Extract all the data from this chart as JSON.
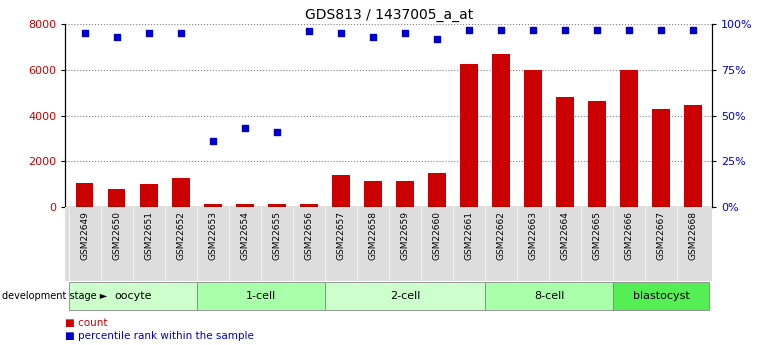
{
  "title": "GDS813 / 1437005_a_at",
  "samples": [
    "GSM22649",
    "GSM22650",
    "GSM22651",
    "GSM22652",
    "GSM22653",
    "GSM22654",
    "GSM22655",
    "GSM22656",
    "GSM22657",
    "GSM22658",
    "GSM22659",
    "GSM22660",
    "GSM22661",
    "GSM22662",
    "GSM22663",
    "GSM22664",
    "GSM22665",
    "GSM22666",
    "GSM22667",
    "GSM22668"
  ],
  "counts": [
    1050,
    800,
    1000,
    1280,
    120,
    150,
    130,
    140,
    1380,
    1150,
    1150,
    1500,
    6250,
    6700,
    6000,
    4800,
    4650,
    6000,
    4300,
    4450
  ],
  "percentile": [
    95,
    93,
    95,
    95,
    36,
    43,
    41,
    96,
    95,
    93,
    95,
    92,
    97,
    97,
    97,
    97,
    97,
    97,
    97,
    97
  ],
  "groups": [
    {
      "label": "oocyte",
      "start": 0,
      "end": 4,
      "color": "#ccffcc"
    },
    {
      "label": "1-cell",
      "start": 4,
      "end": 8,
      "color": "#aaffaa"
    },
    {
      "label": "2-cell",
      "start": 8,
      "end": 13,
      "color": "#ccffcc"
    },
    {
      "label": "8-cell",
      "start": 13,
      "end": 17,
      "color": "#aaffaa"
    },
    {
      "label": "blastocyst",
      "start": 17,
      "end": 20,
      "color": "#55ee55"
    }
  ],
  "ylim_left": [
    0,
    8000
  ],
  "ylim_right": [
    0,
    100
  ],
  "yticks_left": [
    0,
    2000,
    4000,
    6000,
    8000
  ],
  "yticks_right": [
    0,
    25,
    50,
    75,
    100
  ],
  "bar_color": "#cc0000",
  "dot_color": "#0000cc",
  "title_fontsize": 10,
  "left_tick_color": "#cc0000",
  "right_tick_color": "#0000cc",
  "legend_count": "count",
  "legend_pct": "percentile rank within the sample",
  "dev_stage_label": "development stage",
  "xlabel_bg": "#dddddd",
  "group_border_color": "#888888"
}
